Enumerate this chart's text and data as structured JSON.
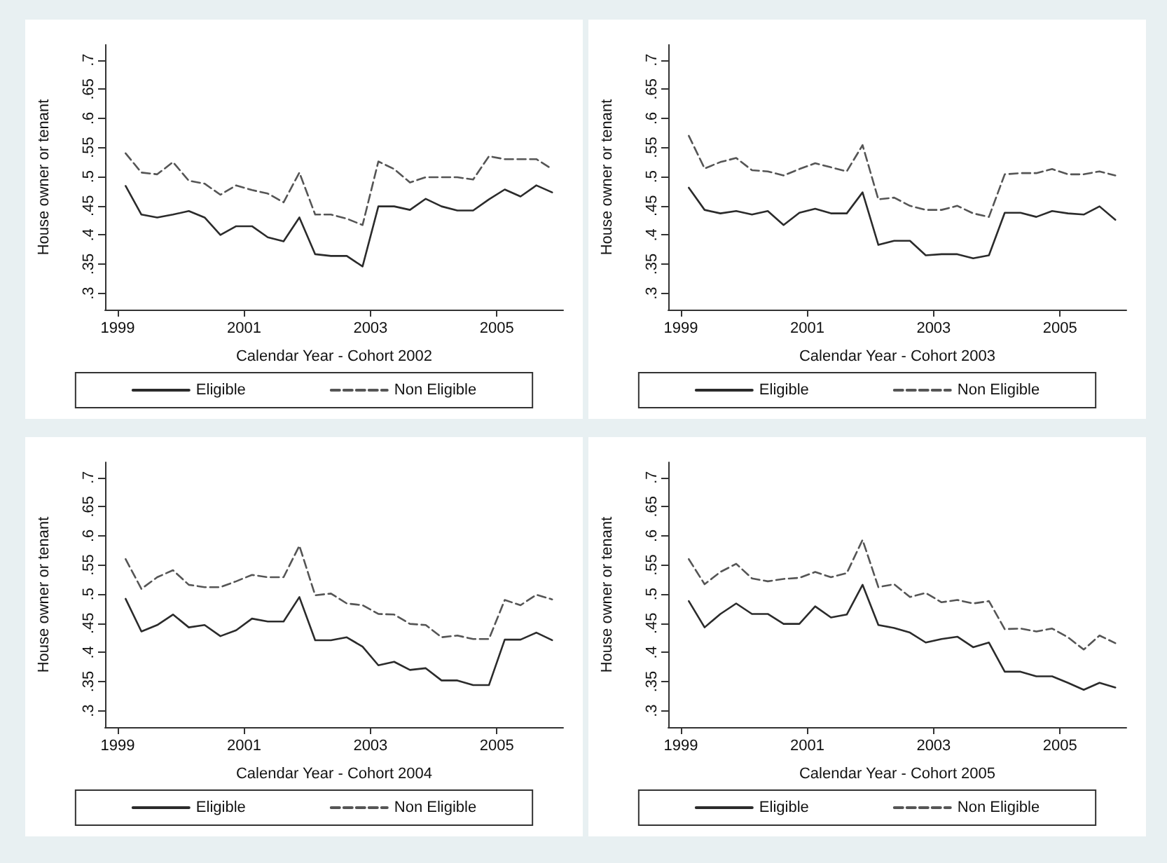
{
  "chart_data": [
    {
      "type": "line",
      "xlabel": "Calendar Year - Cohort 2002",
      "ylabel": "House owner or tenant",
      "legend": "bottom",
      "grid": false,
      "marker": "none",
      "x": [
        1999.125,
        1999.375,
        1999.625,
        1999.875,
        2000.125,
        2000.375,
        2000.625,
        2000.875,
        2001.125,
        2001.375,
        2001.625,
        2001.875,
        2002.125,
        2002.375,
        2002.625,
        2002.875,
        2003.125,
        2003.375,
        2003.625,
        2003.875,
        2004.125,
        2004.375,
        2004.625,
        2004.875,
        2005.125,
        2005.375,
        2005.625,
        2005.875
      ],
      "xlim": [
        1998.8,
        2006.05
      ],
      "xticks": [
        1999,
        2001,
        2003,
        2005
      ],
      "ylim": [
        0.272,
        0.726
      ],
      "yticks": [
        {
          "value": 0.3,
          "label": ".3"
        },
        {
          "value": 0.35,
          "label": ".35"
        },
        {
          "value": 0.4,
          "label": ".4"
        },
        {
          "value": 0.45,
          "label": ".45"
        },
        {
          "value": 0.5,
          "label": ".5"
        },
        {
          "value": 0.55,
          "label": ".55"
        },
        {
          "value": 0.6,
          "label": ".6"
        },
        {
          "value": 0.65,
          "label": ".65"
        },
        {
          "value": 0.7,
          "label": ".7"
        }
      ],
      "series": [
        {
          "name": "Eligible",
          "color": "#2b2b2b",
          "line_style": "solid",
          "values": [
            0.484,
            0.435,
            0.43,
            0.435,
            0.441,
            0.43,
            0.4,
            0.415,
            0.415,
            0.396,
            0.389,
            0.43,
            0.367,
            0.364,
            0.364,
            0.346,
            0.449,
            0.449,
            0.443,
            0.462,
            0.449,
            0.442,
            0.442,
            0.461,
            0.478,
            0.466,
            0.485,
            0.473
          ]
        },
        {
          "name": "Non Eligible",
          "color": "#555555",
          "line_style": "dashed",
          "values": [
            0.54,
            0.507,
            0.504,
            0.525,
            0.493,
            0.488,
            0.469,
            0.485,
            0.477,
            0.471,
            0.456,
            0.507,
            0.435,
            0.435,
            0.428,
            0.417,
            0.526,
            0.513,
            0.49,
            0.499,
            0.499,
            0.499,
            0.495,
            0.535,
            0.53,
            0.53,
            0.53,
            0.513
          ]
        }
      ]
    },
    {
      "type": "line",
      "xlabel": "Calendar Year - Cohort 2003",
      "ylabel": "House owner or tenant",
      "legend": "bottom",
      "grid": false,
      "marker": "none",
      "x": [
        1999.125,
        1999.375,
        1999.625,
        1999.875,
        2000.125,
        2000.375,
        2000.625,
        2000.875,
        2001.125,
        2001.375,
        2001.625,
        2001.875,
        2002.125,
        2002.375,
        2002.625,
        2002.875,
        2003.125,
        2003.375,
        2003.625,
        2003.875,
        2004.125,
        2004.375,
        2004.625,
        2004.875,
        2005.125,
        2005.375,
        2005.625,
        2005.875
      ],
      "xlim": [
        1998.8,
        2006.05
      ],
      "xticks": [
        1999,
        2001,
        2003,
        2005
      ],
      "ylim": [
        0.272,
        0.726
      ],
      "yticks": [
        {
          "value": 0.3,
          "label": ".3"
        },
        {
          "value": 0.35,
          "label": ".35"
        },
        {
          "value": 0.4,
          "label": ".4"
        },
        {
          "value": 0.45,
          "label": ".45"
        },
        {
          "value": 0.5,
          "label": ".5"
        },
        {
          "value": 0.55,
          "label": ".55"
        },
        {
          "value": 0.6,
          "label": ".6"
        },
        {
          "value": 0.65,
          "label": ".65"
        },
        {
          "value": 0.7,
          "label": ".7"
        }
      ],
      "series": [
        {
          "name": "Eligible",
          "color": "#2b2b2b",
          "line_style": "solid",
          "values": [
            0.481,
            0.443,
            0.437,
            0.441,
            0.435,
            0.441,
            0.417,
            0.438,
            0.445,
            0.437,
            0.437,
            0.473,
            0.383,
            0.39,
            0.39,
            0.365,
            0.367,
            0.367,
            0.36,
            0.365,
            0.438,
            0.438,
            0.431,
            0.441,
            0.437,
            0.435,
            0.449,
            0.426
          ]
        },
        {
          "name": "Non Eligible",
          "color": "#555555",
          "line_style": "dashed",
          "values": [
            0.57,
            0.514,
            0.525,
            0.532,
            0.511,
            0.509,
            0.502,
            0.513,
            0.523,
            0.516,
            0.509,
            0.554,
            0.461,
            0.464,
            0.45,
            0.443,
            0.443,
            0.45,
            0.437,
            0.431,
            0.504,
            0.506,
            0.506,
            0.513,
            0.504,
            0.504,
            0.509,
            0.502
          ]
        }
      ]
    },
    {
      "type": "line",
      "xlabel": "Calendar Year - Cohort 2004",
      "ylabel": "House owner or tenant",
      "legend": "bottom",
      "grid": false,
      "marker": "none",
      "x": [
        1999.125,
        1999.375,
        1999.625,
        1999.875,
        2000.125,
        2000.375,
        2000.625,
        2000.875,
        2001.125,
        2001.375,
        2001.625,
        2001.875,
        2002.125,
        2002.375,
        2002.625,
        2002.875,
        2003.125,
        2003.375,
        2003.625,
        2003.875,
        2004.125,
        2004.375,
        2004.625,
        2004.875,
        2005.125,
        2005.375,
        2005.625,
        2005.875
      ],
      "xlim": [
        1998.8,
        2006.05
      ],
      "xticks": [
        1999,
        2001,
        2003,
        2005
      ],
      "ylim": [
        0.272,
        0.726
      ],
      "yticks": [
        {
          "value": 0.3,
          "label": ".3"
        },
        {
          "value": 0.35,
          "label": ".35"
        },
        {
          "value": 0.4,
          "label": ".4"
        },
        {
          "value": 0.45,
          "label": ".45"
        },
        {
          "value": 0.5,
          "label": ".5"
        },
        {
          "value": 0.55,
          "label": ".55"
        },
        {
          "value": 0.6,
          "label": ".6"
        },
        {
          "value": 0.65,
          "label": ".65"
        },
        {
          "value": 0.7,
          "label": ".7"
        }
      ],
      "series": [
        {
          "name": "Eligible",
          "color": "#2b2b2b",
          "line_style": "solid",
          "values": [
            0.492,
            0.436,
            0.447,
            0.465,
            0.443,
            0.447,
            0.428,
            0.438,
            0.458,
            0.453,
            0.453,
            0.495,
            0.421,
            0.421,
            0.426,
            0.41,
            0.378,
            0.384,
            0.37,
            0.373,
            0.352,
            0.352,
            0.344,
            0.344,
            0.422,
            0.422,
            0.434,
            0.421
          ]
        },
        {
          "name": "Non Eligible",
          "color": "#555555",
          "line_style": "dashed",
          "values": [
            0.56,
            0.509,
            0.529,
            0.541,
            0.516,
            0.512,
            0.512,
            0.522,
            0.533,
            0.529,
            0.529,
            0.583,
            0.498,
            0.501,
            0.484,
            0.481,
            0.466,
            0.465,
            0.449,
            0.447,
            0.426,
            0.429,
            0.423,
            0.423,
            0.49,
            0.481,
            0.499,
            0.491
          ]
        }
      ]
    },
    {
      "type": "line",
      "xlabel": "Calendar Year - Cohort 2005",
      "ylabel": "House owner or tenant",
      "legend": "bottom",
      "grid": false,
      "marker": "none",
      "x": [
        1999.125,
        1999.375,
        1999.625,
        1999.875,
        2000.125,
        2000.375,
        2000.625,
        2000.875,
        2001.125,
        2001.375,
        2001.625,
        2001.875,
        2002.125,
        2002.375,
        2002.625,
        2002.875,
        2003.125,
        2003.375,
        2003.625,
        2003.875,
        2004.125,
        2004.375,
        2004.625,
        2004.875,
        2005.125,
        2005.375,
        2005.625,
        2005.875
      ],
      "xlim": [
        1998.8,
        2006.05
      ],
      "xticks": [
        1999,
        2001,
        2003,
        2005
      ],
      "ylim": [
        0.272,
        0.726
      ],
      "yticks": [
        {
          "value": 0.3,
          "label": ".3"
        },
        {
          "value": 0.35,
          "label": ".35"
        },
        {
          "value": 0.4,
          "label": ".4"
        },
        {
          "value": 0.45,
          "label": ".45"
        },
        {
          "value": 0.5,
          "label": ".5"
        },
        {
          "value": 0.55,
          "label": ".55"
        },
        {
          "value": 0.6,
          "label": ".6"
        },
        {
          "value": 0.65,
          "label": ".65"
        },
        {
          "value": 0.7,
          "label": ".7"
        }
      ],
      "series": [
        {
          "name": "Eligible",
          "color": "#2b2b2b",
          "line_style": "solid",
          "values": [
            0.488,
            0.443,
            0.466,
            0.484,
            0.466,
            0.466,
            0.449,
            0.449,
            0.479,
            0.46,
            0.465,
            0.516,
            0.447,
            0.442,
            0.434,
            0.417,
            0.423,
            0.427,
            0.409,
            0.417,
            0.367,
            0.367,
            0.359,
            0.359,
            0.348,
            0.336,
            0.348,
            0.34
          ]
        },
        {
          "name": "Non Eligible",
          "color": "#555555",
          "line_style": "dashed",
          "values": [
            0.56,
            0.517,
            0.538,
            0.552,
            0.527,
            0.522,
            0.526,
            0.528,
            0.538,
            0.529,
            0.536,
            0.593,
            0.512,
            0.517,
            0.495,
            0.502,
            0.486,
            0.49,
            0.484,
            0.488,
            0.44,
            0.441,
            0.436,
            0.441,
            0.426,
            0.405,
            0.429,
            0.416
          ]
        }
      ]
    }
  ]
}
